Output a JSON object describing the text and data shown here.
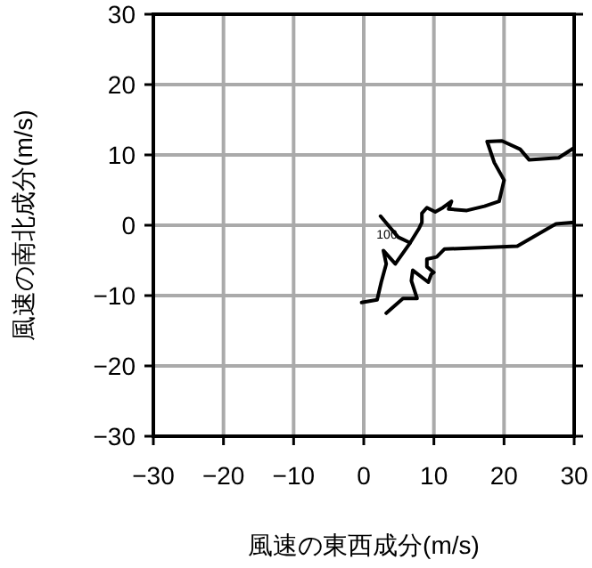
{
  "chart_data": {
    "type": "line",
    "xlabel": "風速の東西成分(m/s)",
    "ylabel": "風速の南北成分(m/s)",
    "xlim": [
      -30,
      30
    ],
    "ylim": [
      -30,
      30
    ],
    "xticks": [
      {
        "value": -30,
        "label": "−30"
      },
      {
        "value": -20,
        "label": "−20"
      },
      {
        "value": -10,
        "label": "−10"
      },
      0,
      10,
      20,
      30
    ],
    "yticks": [
      {
        "value": -30,
        "label": "−30"
      },
      {
        "value": -20,
        "label": "−20"
      },
      {
        "value": -10,
        "label": "−10"
      },
      0,
      10,
      20,
      30
    ],
    "grid": true,
    "marker": "none",
    "line_style": "solid",
    "annotations": [
      "100"
    ],
    "series": [
      {
        "color": "#000000",
        "x": [
          2.4,
          4.9,
          6.6,
          7.9,
          8.3,
          8.3,
          9.0,
          10.2,
          11.3,
          12.5,
          12.1,
          14.7,
          17.2,
          19.3,
          20.0,
          18.6,
          17.6,
          19.7,
          22.3,
          23.6,
          27.8,
          30
        ],
        "values": [
          1.3,
          -1.7,
          -2.5,
          -0.4,
          0.4,
          1.7,
          2.5,
          1.9,
          2.5,
          3.4,
          2.3,
          2.1,
          2.7,
          3.4,
          6.4,
          8.9,
          11.9,
          12.0,
          10.8,
          9.3,
          9.6,
          11
        ]
      },
      {
        "color": "#000000",
        "x": [
          3.2,
          5.6,
          7.6,
          6.8,
          7.0,
          9.2,
          9.6,
          10.0,
          9.0,
          9.0,
          10.4,
          11.5,
          21.9,
          27.4,
          30
        ],
        "values": [
          -12.5,
          -10.4,
          -10.4,
          -7.9,
          -6.4,
          -8.1,
          -7.0,
          -6.7,
          -5.9,
          -4.8,
          -4.5,
          -3.4,
          -3.0,
          0.2,
          0.4
        ]
      },
      {
        "color": "#000000",
        "x": [
          -0.3,
          1.9,
          2.5,
          3.2,
          2.8,
          4.5,
          6.6
        ],
        "values": [
          -11.0,
          -10.6,
          -8.1,
          -5.5,
          -3.6,
          -5.5,
          -2.5
        ]
      }
    ]
  }
}
